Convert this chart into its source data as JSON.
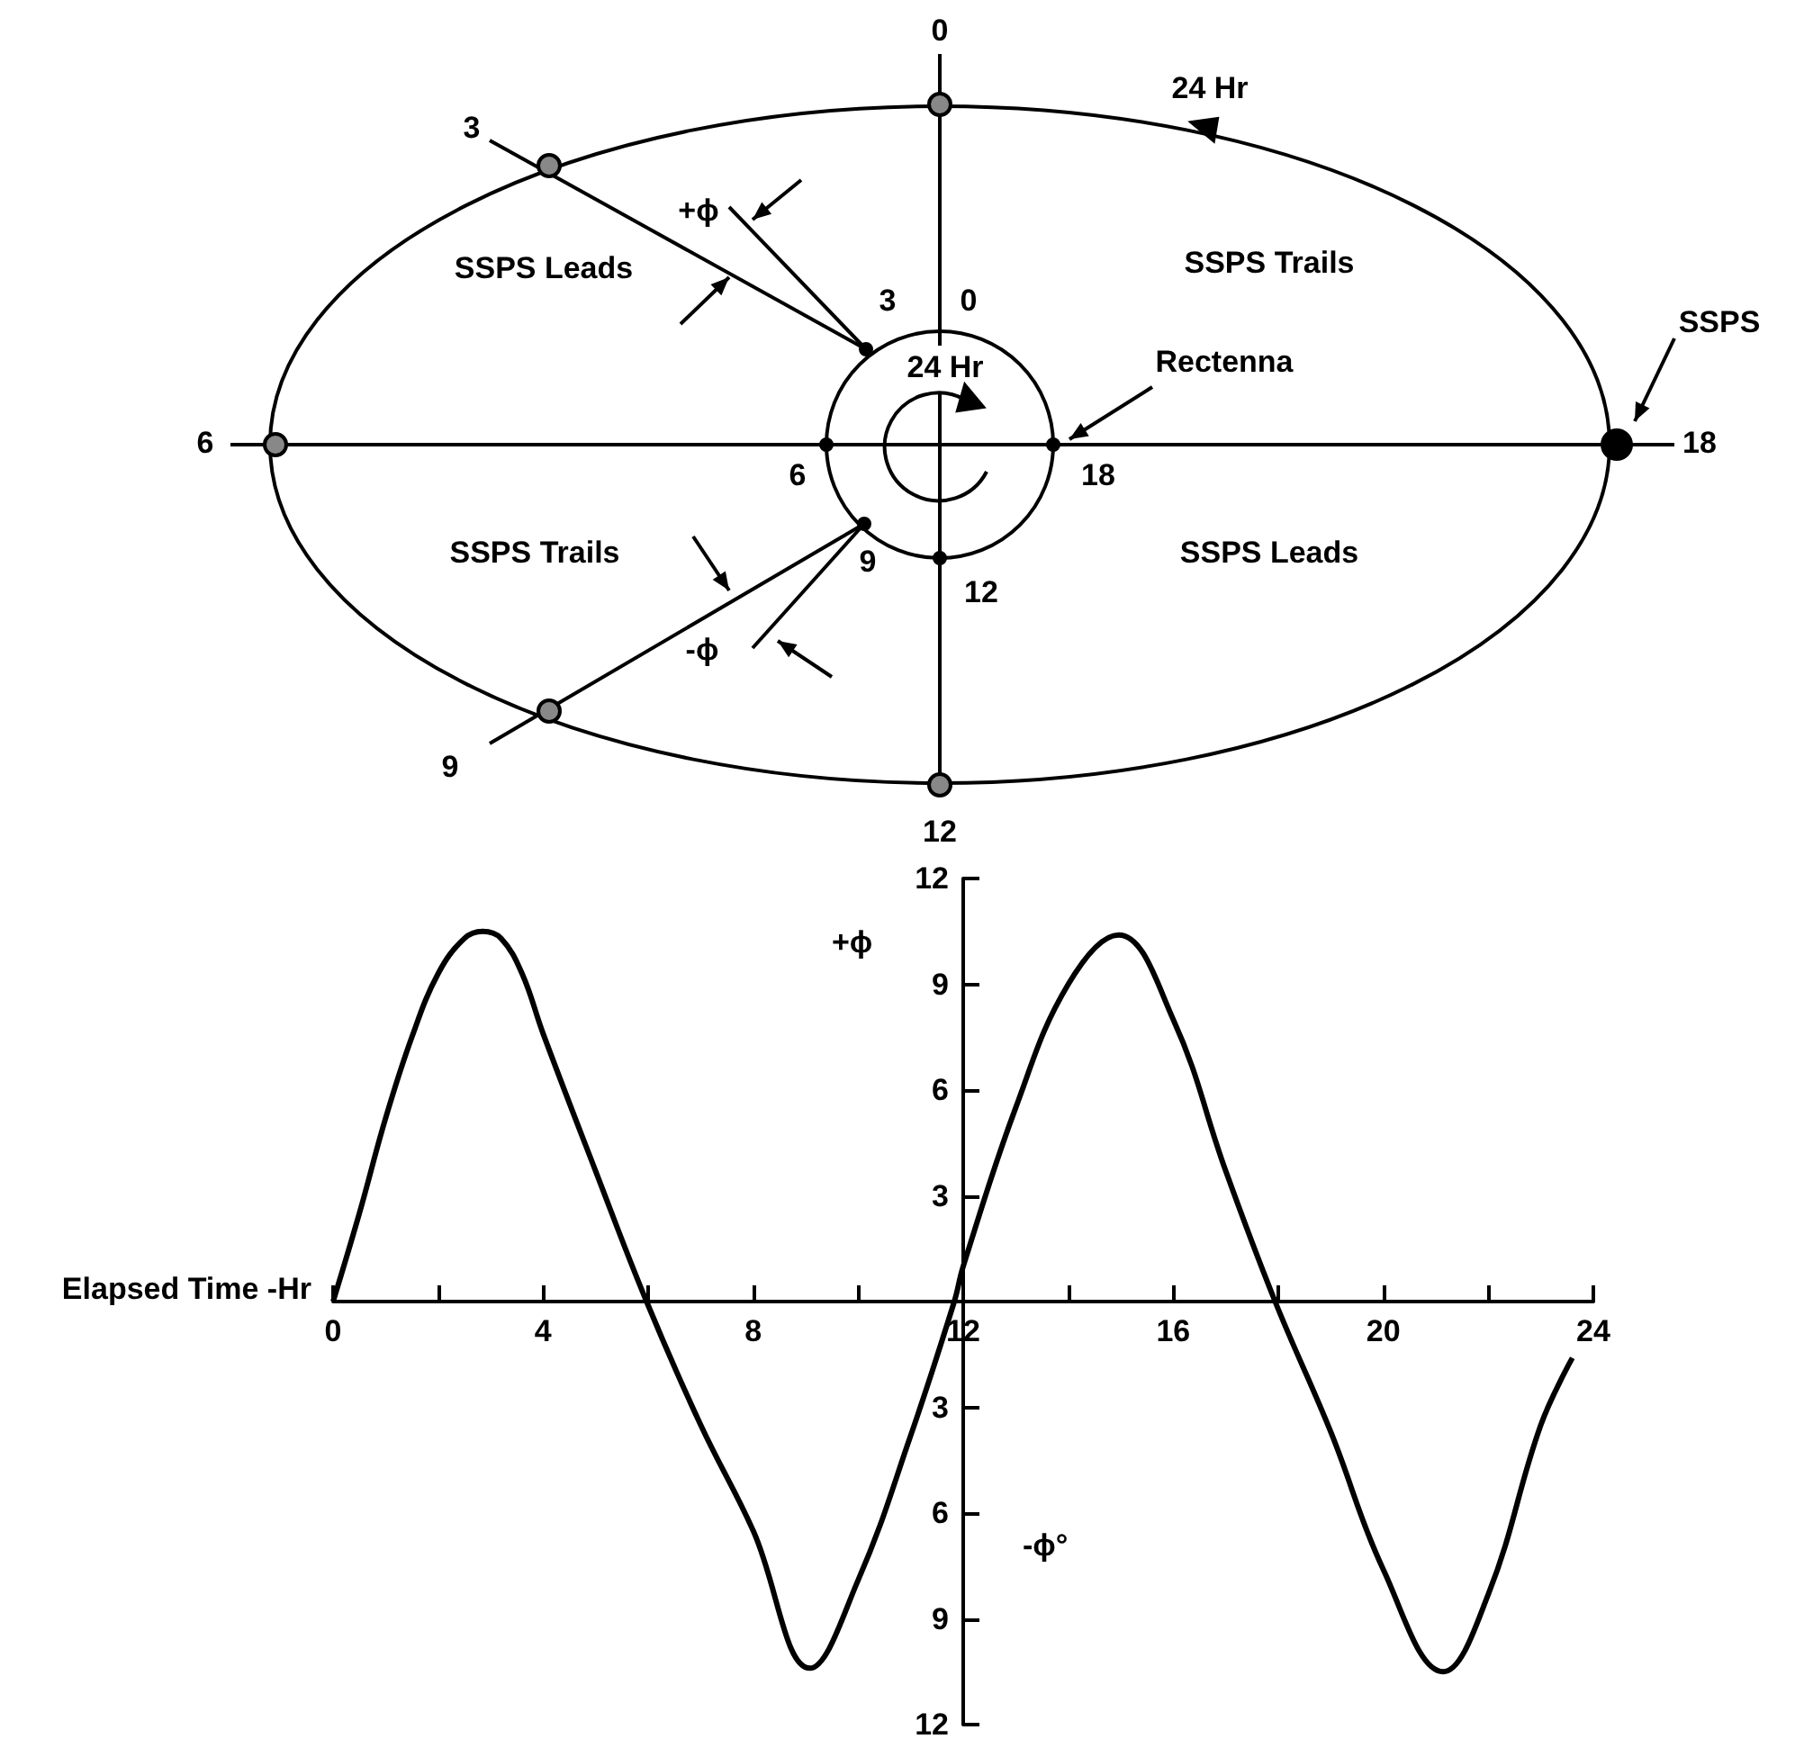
{
  "chart_data": [
    {
      "type": "other",
      "annotations": [
        "0",
        "24 Hr",
        "3",
        "+ϕ",
        "SSPS Leads",
        "3",
        "0",
        "SSPS Trails",
        "24 Hr",
        "Rectenna",
        "SSPS",
        "6",
        "18",
        "6",
        "18",
        "SSPS Trails",
        "9",
        "SSPS Leads",
        "12",
        "-ϕ",
        "9",
        "12"
      ]
    },
    {
      "type": "line",
      "xlabel": "Elapsed Time -Hr",
      "ylabel": "+ϕ",
      "annotations": [
        "-ϕ°"
      ],
      "color": "#000000",
      "marker": "none",
      "grid": false,
      "x": [
        0,
        0.5,
        1,
        1.5,
        2,
        2.5,
        2.85,
        3.2,
        3.6,
        4,
        5,
        5.97,
        7,
        8,
        9.08,
        10,
        11,
        11.83,
        12,
        13,
        14,
        14.96,
        16,
        17,
        17.94,
        19,
        20,
        21.14,
        22,
        23,
        23.6
      ],
      "values": [
        0,
        2.5,
        5.2,
        7.5,
        9.3,
        10.3,
        10.5,
        10.3,
        9.3,
        7.6,
        3.7,
        0,
        -3.5,
        -6.5,
        -10.4,
        -7.9,
        -3.8,
        0,
        1,
        5.5,
        9,
        10.4,
        8,
        3.7,
        0,
        -3.7,
        -7.6,
        -10.5,
        -8.3,
        -3.5,
        -1.6
      ],
      "xlim": [
        0,
        24
      ],
      "ylim": [
        -12,
        12
      ],
      "xticks": [
        0,
        {
          "value": 2,
          "label": null
        },
        4,
        {
          "value": 6,
          "label": null
        },
        8,
        {
          "value": 10,
          "label": null
        },
        12,
        {
          "value": 14,
          "label": null
        },
        16,
        {
          "value": 18,
          "label": null
        },
        20,
        {
          "value": 22,
          "label": null
        },
        24
      ],
      "yticks": [
        {
          "value": -12,
          "label": "12"
        },
        {
          "value": -9,
          "label": "9"
        },
        {
          "value": -6,
          "label": "6"
        },
        {
          "value": -3,
          "label": "3"
        },
        {
          "value": 0,
          "label": null
        },
        3,
        6,
        9,
        12
      ]
    }
  ]
}
